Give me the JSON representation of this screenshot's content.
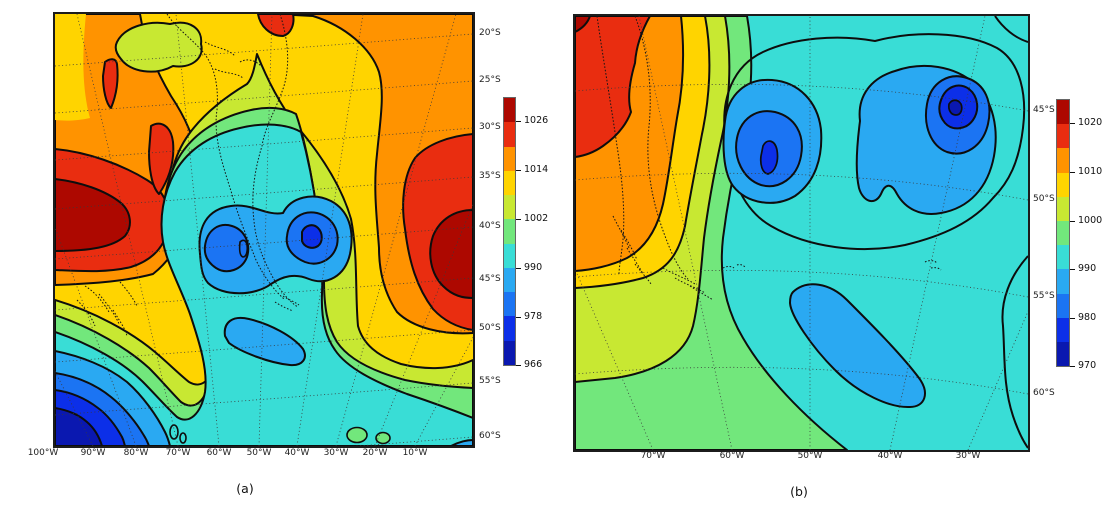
{
  "palette": [
    "#0a18b0",
    "#0c2fe8",
    "#1b74f3",
    "#2aa9f2",
    "#39ddd6",
    "#72e77c",
    "#c8e832",
    "#ffd400",
    "#ff9300",
    "#e92d10",
    "#ad0800"
  ],
  "panel_a": {
    "caption": "(a)",
    "x_tick_labels": [
      "100°W",
      "90°W",
      "80°W",
      "70°W",
      "60°W",
      "50°W",
      "40°W",
      "30°W",
      "20°W",
      "10°W"
    ],
    "y_tick_labels": [
      "20°S",
      "25°S",
      "30°S",
      "35°S",
      "40°S",
      "45°S",
      "50°S",
      "55°S",
      "60°S"
    ],
    "colorbar_tick_labels": [
      "1026",
      "1014",
      "1002",
      "990",
      "978",
      "966"
    ]
  },
  "panel_b": {
    "caption": "(b)",
    "x_tick_labels": [
      "70°W",
      "60°W",
      "50°W",
      "40°W",
      "30°W"
    ],
    "y_tick_labels": [
      "45°S",
      "50°S",
      "55°S",
      "60°S"
    ],
    "colorbar_tick_labels": [
      "1020",
      "1010",
      "1000",
      "990",
      "980",
      "970"
    ]
  },
  "chart_data": [
    {
      "panel": "(a)",
      "type": "heatmap",
      "subtype": "filled_contour_map",
      "x_tick_labels": [
        "100°W",
        "90°W",
        "80°W",
        "70°W",
        "60°W",
        "50°W",
        "40°W",
        "30°W",
        "20°W",
        "10°W"
      ],
      "y_tick_labels": [
        "20°S",
        "25°S",
        "30°S",
        "35°S",
        "40°S",
        "45°S",
        "50°S",
        "55°S",
        "60°S"
      ],
      "y_axis_side": "right",
      "colorbar": {
        "tick_values": [
          1026,
          1014,
          1002,
          990,
          978,
          966
        ],
        "n_bands": 11,
        "band_step": 6,
        "range": [
          966,
          1032
        ]
      },
      "features": [
        "closed low with two centers near 40°S between 50°W and 30°W (minima below 978)",
        "deep low in bottom-left corner (below 966)",
        "high pressure cell on left edge around 35°S (above 1026)",
        "high pressure cell on right edge around 35-40°S (above 1026)",
        "secondary weak low near 50°S 35°W",
        "dashed South America coastline, dotted curved lat/lon graticule"
      ]
    },
    {
      "panel": "(b)",
      "type": "heatmap",
      "subtype": "filled_contour_map",
      "x_tick_labels": [
        "70°W",
        "60°W",
        "50°W",
        "40°W",
        "30°W"
      ],
      "y_tick_labels": [
        "45°S",
        "50°S",
        "55°S",
        "60°S"
      ],
      "y_axis_side": "right",
      "colorbar": {
        "tick_values": [
          1020,
          1010,
          1000,
          990,
          980,
          970
        ],
        "n_bands": 11,
        "band_step": 5,
        "range": [
          970,
          1025
        ]
      },
      "features": [
        "two closed low centers near 45°S: one near 55°W (minimum below 980) and a deeper one near 38°W (minimum below 975)",
        "elongated weak low near 55-60°S 40°W",
        "high pressure over Patagonia / left edge (above 1020)",
        "dashed Patagonia coastline, dotted curved lat/lon graticule"
      ]
    }
  ]
}
